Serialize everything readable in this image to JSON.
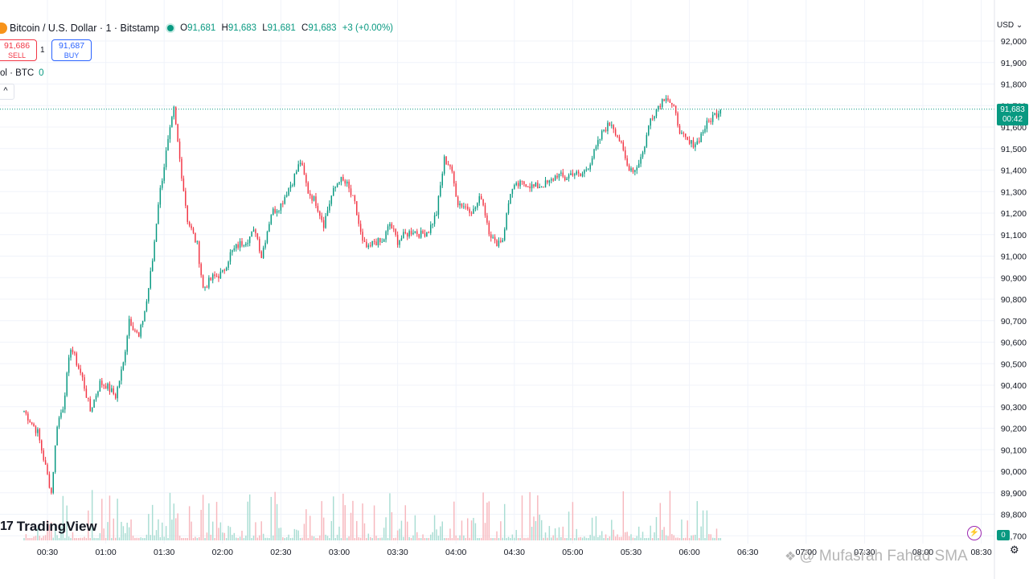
{
  "header": {
    "symbol": "Bitcoin / U.S. Dollar · 1 · Bitstamp",
    "o_label": "O",
    "o_value": "91,681",
    "h_label": "H",
    "h_value": "91,683",
    "l_label": "L",
    "l_value": "91,681",
    "c_label": "C",
    "c_value": "91,683",
    "change": "+3 (+0.00%)"
  },
  "trade": {
    "sell_price": "91,686",
    "sell_label": "SELL",
    "quantity": "1",
    "buy_price": "91,687",
    "buy_label": "BUY"
  },
  "volume_legend": {
    "label": "ol · BTC",
    "value": "0"
  },
  "collapse_glyph": "^",
  "currency": "USD ⌄",
  "last_price": {
    "price": "91,683",
    "countdown": "00:42"
  },
  "volume_tag": "0",
  "logo": {
    "mark": "17",
    "text": "TradingView"
  },
  "watermark": "@ Mufasrah Fahad SMA",
  "icons": {
    "settings": "gear-icon",
    "alert": "lightning-icon",
    "watermark": "diamond-icon"
  },
  "colors": {
    "up": "#089981",
    "down": "#f23645",
    "up_volume": "#a9ddd3",
    "down_volume": "#f7b7bd",
    "last_price_line": "#089981"
  },
  "chart_data": {
    "type": "candlestick",
    "interval": "1 minute",
    "y_ticks": [
      "92,000",
      "91,900",
      "91,800",
      "91,700",
      "91,600",
      "91,500",
      "91,400",
      "91,300",
      "91,200",
      "91,100",
      "91,000",
      "90,900",
      "90,800",
      "90,700",
      "90,600",
      "90,500",
      "90,400",
      "90,300",
      "90,200",
      "90,100",
      "90,000",
      "89,900",
      "89,800",
      "89,700"
    ],
    "x_ticks": [
      "00:30",
      "01:00",
      "01:30",
      "02:00",
      "02:30",
      "03:00",
      "03:30",
      "04:00",
      "04:30",
      "05:00",
      "05:30",
      "06:00",
      "06:30",
      "07:00",
      "07:30",
      "08:00",
      "08:30"
    ],
    "ylim": [
      89700,
      92000
    ],
    "last_price": 91683,
    "close_path_keypoints": [
      [
        "00:18",
        90280
      ],
      [
        "00:25",
        90180
      ],
      [
        "00:32",
        89900
      ],
      [
        "00:35",
        90220
      ],
      [
        "00:38",
        90300
      ],
      [
        "00:42",
        90580
      ],
      [
        "00:48",
        90430
      ],
      [
        "00:52",
        90280
      ],
      [
        "00:57",
        90410
      ],
      [
        "01:00",
        90400
      ],
      [
        "01:05",
        90350
      ],
      [
        "01:09",
        90500
      ],
      [
        "01:12",
        90710
      ],
      [
        "01:17",
        90620
      ],
      [
        "01:21",
        90790
      ],
      [
        "01:24",
        90980
      ],
      [
        "01:27",
        91250
      ],
      [
        "01:31",
        91480
      ],
      [
        "01:35",
        91680
      ],
      [
        "01:38",
        91450
      ],
      [
        "01:42",
        91170
      ],
      [
        "01:47",
        91050
      ],
      [
        "01:50",
        90850
      ],
      [
        "01:55",
        90900
      ],
      [
        "02:00",
        90920
      ],
      [
        "02:04",
        91010
      ],
      [
        "02:08",
        91050
      ],
      [
        "02:13",
        91080
      ],
      [
        "02:17",
        91120
      ],
      [
        "02:20",
        91000
      ],
      [
        "02:25",
        91200
      ],
      [
        "02:30",
        91240
      ],
      [
        "02:33",
        91300
      ],
      [
        "02:36",
        91350
      ],
      [
        "02:40",
        91440
      ],
      [
        "02:44",
        91300
      ],
      [
        "02:48",
        91250
      ],
      [
        "02:52",
        91150
      ],
      [
        "02:56",
        91280
      ],
      [
        "03:00",
        91360
      ],
      [
        "03:04",
        91330
      ],
      [
        "03:08",
        91240
      ],
      [
        "03:12",
        91060
      ],
      [
        "03:15",
        91030
      ],
      [
        "03:18",
        91070
      ],
      [
        "03:22",
        91060
      ],
      [
        "03:26",
        91150
      ],
      [
        "03:30",
        91070
      ],
      [
        "03:34",
        91100
      ],
      [
        "03:38",
        91120
      ],
      [
        "03:42",
        91100
      ],
      [
        "03:46",
        91120
      ],
      [
        "03:50",
        91200
      ],
      [
        "03:54",
        91450
      ],
      [
        "03:57",
        91420
      ],
      [
        "04:01",
        91250
      ],
      [
        "04:05",
        91230
      ],
      [
        "04:09",
        91210
      ],
      [
        "04:13",
        91280
      ],
      [
        "04:17",
        91120
      ],
      [
        "04:20",
        91060
      ],
      [
        "04:24",
        91080
      ],
      [
        "04:28",
        91300
      ],
      [
        "04:32",
        91330
      ],
      [
        "04:36",
        91340
      ],
      [
        "04:40",
        91320
      ],
      [
        "04:44",
        91330
      ],
      [
        "04:48",
        91340
      ],
      [
        "04:52",
        91380
      ],
      [
        "04:56",
        91360
      ],
      [
        "05:00",
        91390
      ],
      [
        "05:04",
        91370
      ],
      [
        "05:08",
        91420
      ],
      [
        "05:12",
        91500
      ],
      [
        "05:16",
        91590
      ],
      [
        "05:20",
        91620
      ],
      [
        "05:24",
        91540
      ],
      [
        "05:28",
        91420
      ],
      [
        "05:32",
        91400
      ],
      [
        "05:36",
        91480
      ],
      [
        "05:40",
        91640
      ],
      [
        "05:44",
        91700
      ],
      [
        "05:48",
        91750
      ],
      [
        "05:52",
        91680
      ],
      [
        "05:56",
        91560
      ],
      [
        "06:00",
        91520
      ],
      [
        "06:04",
        91530
      ],
      [
        "06:08",
        91600
      ],
      [
        "06:12",
        91650
      ],
      [
        "06:16",
        91680
      ]
    ]
  }
}
